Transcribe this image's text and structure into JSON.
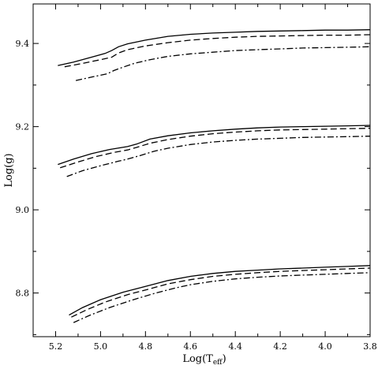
{
  "chart_data": {
    "type": "line",
    "title": "",
    "xlabel_main": "Log(T",
    "xlabel_sub": "eff",
    "xlabel_close": ")",
    "ylabel": "Log(g)",
    "xlim": [
      5.3,
      3.8
    ],
    "ylim": [
      8.695,
      9.495
    ],
    "x_reversed": true,
    "grid": false,
    "legend": "none",
    "x_ticks": [
      5.2,
      5.0,
      4.8,
      4.6,
      4.4,
      4.2,
      4.0,
      3.8
    ],
    "x_tick_labels": [
      "5.2",
      "5.0",
      "4.8",
      "4.6",
      "4.4",
      "4.2",
      "4.0",
      "3.8"
    ],
    "y_ticks": [
      8.8,
      9.0,
      9.2,
      9.4
    ],
    "y_tick_labels": [
      "8.8",
      "9.0",
      "9.2",
      "9.4"
    ],
    "groups": [
      {
        "series": [
          {
            "style": "solid",
            "x": [
              5.19,
              5.12,
              5.04,
              4.98,
              4.95,
              4.92,
              4.88,
              4.8,
              4.7,
              4.6,
              4.5,
              4.4,
              4.3,
              4.2,
              4.1,
              4.0,
              3.9,
              3.8
            ],
            "y": [
              9.347,
              9.355,
              9.367,
              9.376,
              9.383,
              9.392,
              9.399,
              9.408,
              9.417,
              9.422,
              9.425,
              9.427,
              9.429,
              9.43,
              9.431,
              9.432,
              9.432,
              9.433
            ]
          },
          {
            "style": "dashed",
            "x": [
              5.16,
              5.08,
              5.0,
              4.95,
              4.92,
              4.88,
              4.8,
              4.7,
              4.6,
              4.5,
              4.4,
              4.3,
              4.2,
              4.1,
              4.0,
              3.9,
              3.8
            ],
            "y": [
              9.344,
              9.352,
              9.361,
              9.367,
              9.377,
              9.385,
              9.394,
              9.402,
              9.408,
              9.412,
              9.415,
              9.417,
              9.418,
              9.419,
              9.42,
              9.42,
              9.421
            ]
          },
          {
            "style": "dashdot",
            "x": [
              5.11,
              5.04,
              4.97,
              4.94,
              4.9,
              4.85,
              4.78,
              4.7,
              4.6,
              4.5,
              4.4,
              4.3,
              4.2,
              4.1,
              4.0,
              3.9,
              3.8
            ],
            "y": [
              9.311,
              9.319,
              9.327,
              9.335,
              9.343,
              9.352,
              9.361,
              9.369,
              9.375,
              9.379,
              9.383,
              9.385,
              9.387,
              9.389,
              9.39,
              9.391,
              9.392
            ]
          }
        ]
      },
      {
        "series": [
          {
            "style": "solid",
            "x": [
              5.19,
              5.12,
              5.04,
              4.96,
              4.88,
              4.84,
              4.78,
              4.7,
              4.6,
              4.5,
              4.4,
              4.3,
              4.2,
              4.1,
              4.0,
              3.9,
              3.8
            ],
            "y": [
              9.109,
              9.122,
              9.135,
              9.145,
              9.152,
              9.158,
              9.17,
              9.178,
              9.185,
              9.19,
              9.194,
              9.197,
              9.199,
              9.2,
              9.201,
              9.202,
              9.203
            ]
          },
          {
            "style": "dashed",
            "x": [
              5.18,
              5.1,
              5.02,
              4.94,
              4.88,
              4.84,
              4.78,
              4.7,
              4.6,
              4.5,
              4.4,
              4.3,
              4.2,
              4.1,
              4.0,
              3.9,
              3.8
            ],
            "y": [
              9.101,
              9.115,
              9.128,
              9.138,
              9.144,
              9.15,
              9.16,
              9.169,
              9.177,
              9.183,
              9.187,
              9.19,
              9.192,
              9.193,
              9.194,
              9.195,
              9.196
            ]
          },
          {
            "style": "dashdot",
            "x": [
              5.15,
              5.08,
              5.0,
              4.92,
              4.88,
              4.82,
              4.76,
              4.7,
              4.6,
              4.5,
              4.4,
              4.3,
              4.2,
              4.1,
              4.0,
              3.9,
              3.8
            ],
            "y": [
              9.08,
              9.094,
              9.106,
              9.117,
              9.122,
              9.131,
              9.141,
              9.148,
              9.157,
              9.163,
              9.167,
              9.17,
              9.172,
              9.174,
              9.175,
              9.176,
              9.177
            ]
          }
        ]
      },
      {
        "series": [
          {
            "style": "solid",
            "x": [
              5.14,
              5.08,
              5.0,
              4.9,
              4.8,
              4.7,
              4.6,
              4.5,
              4.4,
              4.3,
              4.2,
              4.1,
              4.0,
              3.9,
              3.8
            ],
            "y": [
              8.747,
              8.765,
              8.784,
              8.802,
              8.816,
              8.83,
              8.84,
              8.847,
              8.852,
              8.855,
              8.858,
              8.86,
              8.862,
              8.864,
              8.866
            ]
          },
          {
            "style": "dashed",
            "x": [
              5.13,
              5.06,
              4.98,
              4.88,
              4.78,
              4.7,
              4.6,
              4.5,
              4.4,
              4.3,
              4.2,
              4.1,
              4.0,
              3.9,
              3.8
            ],
            "y": [
              8.742,
              8.76,
              8.778,
              8.796,
              8.81,
              8.822,
              8.832,
              8.84,
              8.845,
              8.849,
              8.852,
              8.854,
              8.856,
              8.858,
              8.86
            ]
          },
          {
            "style": "dashdot",
            "x": [
              5.12,
              5.05,
              4.96,
              4.86,
              4.76,
              4.66,
              4.6,
              4.5,
              4.4,
              4.3,
              4.2,
              4.1,
              4.0,
              3.9,
              3.8
            ],
            "y": [
              8.729,
              8.746,
              8.765,
              8.783,
              8.799,
              8.813,
              8.82,
              8.828,
              8.834,
              8.838,
              8.841,
              8.843,
              8.845,
              8.847,
              8.849
            ]
          }
        ]
      }
    ]
  }
}
